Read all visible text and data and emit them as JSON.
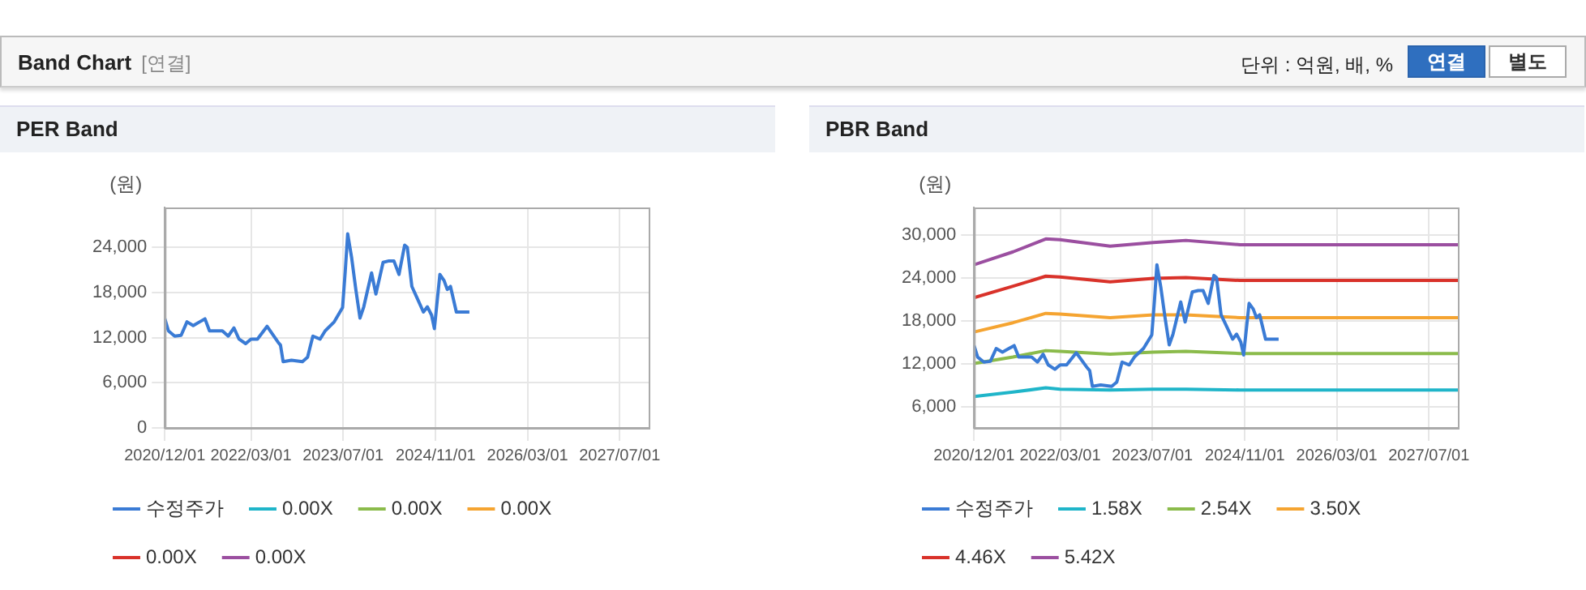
{
  "chart_data": [
    {
      "type": "line",
      "title": "PER Band",
      "ylabel": "(원)",
      "annotations": [
        "Band Chart",
        "[연결]",
        "단위 : 억원, 배, %",
        "연결",
        "별도"
      ],
      "x": [
        "2020-12-01",
        "2020-12-20",
        "2021-01-22",
        "2021-02-25",
        "2021-03-28",
        "2021-04-30",
        "2021-06-03",
        "2021-07-01",
        "2021-07-25",
        "2021-10-01",
        "2021-11-01",
        "2021-12-01",
        "2021-12-28",
        "2022-02-01",
        "2022-03-01",
        "2022-04-04",
        "2022-05-25",
        "2022-07-22",
        "2022-08-04",
        "2022-08-18",
        "2022-10-01",
        "2022-11-28",
        "2022-12-25",
        "2023-01-22",
        "2023-03-01",
        "2023-03-28",
        "2023-05-15",
        "2023-06-28",
        "2023-07-12",
        "2023-07-25",
        "2023-08-15",
        "2023-09-06",
        "2023-09-28",
        "2023-10-18",
        "2023-11-28",
        "2023-12-21",
        "2024-01-28",
        "2024-02-28",
        "2024-03-25",
        "2024-04-21",
        "2024-05-21",
        "2024-06-04",
        "2024-06-28",
        "2024-07-25",
        "2024-08-28",
        "2024-09-18",
        "2024-10-10",
        "2024-10-25",
        "2024-11-23",
        "2024-12-15",
        "2025-01-01",
        "2025-01-18",
        "2025-02-18",
        "2025-04-28"
      ],
      "series": [
        {
          "name": "수정주가",
          "color": "#3a7bd5",
          "values": [
            14500,
            12900,
            12200,
            12300,
            14100,
            13600,
            14100,
            14500,
            12900,
            12900,
            12200,
            13300,
            11800,
            11200,
            11800,
            11800,
            13500,
            11400,
            11000,
            8800,
            9000,
            8800,
            9400,
            12200,
            11800,
            12900,
            14100,
            16000,
            20800,
            25800,
            22600,
            18400,
            14600,
            16100,
            20600,
            17800,
            22000,
            22200,
            22200,
            20400,
            24300,
            24000,
            18800,
            17300,
            15400,
            16100,
            15000,
            13200,
            20400,
            19600,
            18400,
            18800,
            15400,
            15400
          ]
        },
        {
          "name": "0.00X",
          "color": "#1fb5c9",
          "values": [
            null,
            null,
            null,
            null,
            null,
            null,
            null,
            null,
            null,
            null,
            null,
            null,
            null,
            null,
            null,
            null,
            null,
            null,
            null,
            null,
            null,
            null,
            null,
            null,
            null,
            null,
            null,
            null,
            null,
            null,
            null,
            null,
            null,
            null,
            null,
            null,
            null,
            null,
            null,
            null,
            null,
            null,
            null,
            null,
            null,
            null,
            null,
            null,
            null,
            null,
            null,
            null,
            null,
            null
          ]
        },
        {
          "name": "0.00X",
          "color": "#8bbb4b",
          "values": [
            null,
            null,
            null,
            null,
            null,
            null,
            null,
            null,
            null,
            null,
            null,
            null,
            null,
            null,
            null,
            null,
            null,
            null,
            null,
            null,
            null,
            null,
            null,
            null,
            null,
            null,
            null,
            null,
            null,
            null,
            null,
            null,
            null,
            null,
            null,
            null,
            null,
            null,
            null,
            null,
            null,
            null,
            null,
            null,
            null,
            null,
            null,
            null,
            null,
            null,
            null,
            null,
            null,
            null
          ]
        },
        {
          "name": "0.00X",
          "color": "#f5a431",
          "values": [
            null,
            null,
            null,
            null,
            null,
            null,
            null,
            null,
            null,
            null,
            null,
            null,
            null,
            null,
            null,
            null,
            null,
            null,
            null,
            null,
            null,
            null,
            null,
            null,
            null,
            null,
            null,
            null,
            null,
            null,
            null,
            null,
            null,
            null,
            null,
            null,
            null,
            null,
            null,
            null,
            null,
            null,
            null,
            null,
            null,
            null,
            null,
            null,
            null,
            null,
            null,
            null,
            null,
            null
          ]
        },
        {
          "name": "0.00X",
          "color": "#d9322a",
          "values": [
            null,
            null,
            null,
            null,
            null,
            null,
            null,
            null,
            null,
            null,
            null,
            null,
            null,
            null,
            null,
            null,
            null,
            null,
            null,
            null,
            null,
            null,
            null,
            null,
            null,
            null,
            null,
            null,
            null,
            null,
            null,
            null,
            null,
            null,
            null,
            null,
            null,
            null,
            null,
            null,
            null,
            null,
            null,
            null,
            null,
            null,
            null,
            null,
            null,
            null,
            null,
            null,
            null,
            null
          ]
        },
        {
          "name": "0.00X",
          "color": "#9b4fa0",
          "values": [
            null,
            null,
            null,
            null,
            null,
            null,
            null,
            null,
            null,
            null,
            null,
            null,
            null,
            null,
            null,
            null,
            null,
            null,
            null,
            null,
            null,
            null,
            null,
            null,
            null,
            null,
            null,
            null,
            null,
            null,
            null,
            null,
            null,
            null,
            null,
            null,
            null,
            null,
            null,
            null,
            null,
            null,
            null,
            null,
            null,
            null,
            null,
            null,
            null,
            null,
            null,
            null,
            null,
            null
          ]
        }
      ],
      "xlim": [
        "2020-12-01",
        "2027-12-01"
      ],
      "xticks": [
        {
          "value": "2020-12-01",
          "label": "2020/12/01"
        },
        {
          "value": "2022-03-01",
          "label": "2022/03/01"
        },
        {
          "value": "2023-07-01",
          "label": "2023/07/01"
        },
        {
          "value": "2024-11-01",
          "label": "2024/11/01"
        },
        {
          "value": "2026-03-01",
          "label": "2026/03/01"
        },
        {
          "value": "2027-07-01",
          "label": "2027/07/01"
        }
      ],
      "ylim": [
        0,
        29300
      ],
      "yticks": [
        0,
        {
          "value": 6000,
          "label": "6,000"
        },
        {
          "value": 12000,
          "label": "12,000"
        },
        {
          "value": 18000,
          "label": "18,000"
        },
        {
          "value": 24000,
          "label": "24,000"
        }
      ],
      "grid": true,
      "legend": "bottom",
      "marker": "none",
      "line_style": "solid"
    },
    {
      "type": "line",
      "title": "PBR Band",
      "ylabel": "(원)",
      "x": [
        "2020-12-01",
        "2020-12-20",
        "2021-01-22",
        "2021-02-25",
        "2021-03-28",
        "2021-04-30",
        "2021-06-03",
        "2021-07-01",
        "2021-07-25",
        "2021-10-01",
        "2021-11-01",
        "2021-12-01",
        "2021-12-28",
        "2022-02-01",
        "2022-03-01",
        "2022-04-04",
        "2022-05-25",
        "2022-07-22",
        "2022-08-04",
        "2022-08-18",
        "2022-10-01",
        "2022-11-28",
        "2022-12-25",
        "2023-01-22",
        "2023-03-01",
        "2023-03-28",
        "2023-05-15",
        "2023-06-28",
        "2023-07-12",
        "2023-07-25",
        "2023-08-15",
        "2023-09-06",
        "2023-09-28",
        "2023-10-18",
        "2023-11-28",
        "2023-12-21",
        "2024-01-28",
        "2024-02-28",
        "2024-03-25",
        "2024-04-21",
        "2024-05-21",
        "2024-06-04",
        "2024-06-28",
        "2024-07-25",
        "2024-08-28",
        "2024-09-18",
        "2024-10-10",
        "2024-10-25",
        "2024-11-23",
        "2024-12-15",
        "2025-01-01",
        "2025-01-18",
        "2025-02-18",
        "2025-04-28"
      ],
      "series": [
        {
          "name": "수정주가",
          "color": "#3a7bd5",
          "values": [
            14500,
            12900,
            12200,
            12300,
            14100,
            13600,
            14100,
            14500,
            12900,
            12900,
            12200,
            13300,
            11800,
            11200,
            11800,
            11800,
            13500,
            11400,
            11000,
            8800,
            9000,
            8800,
            9400,
            12200,
            11800,
            12900,
            14100,
            16000,
            20800,
            25800,
            22600,
            18400,
            14600,
            16100,
            20600,
            17800,
            22000,
            22200,
            22200,
            20400,
            24300,
            24000,
            18800,
            17300,
            15400,
            16100,
            15000,
            13200,
            20400,
            19600,
            18400,
            18800,
            15400,
            15400
          ]
        },
        {
          "name": "1.58X",
          "color": "#1fb5c9",
          "x": [
            "2020-12-01",
            "2021-06-25",
            "2021-12-15",
            "2022-02-28",
            "2022-11-20",
            "2023-07-06",
            "2023-12-25",
            "2024-10-06",
            "2027-12-01"
          ],
          "values": [
            7400,
            8000,
            8600,
            8400,
            8300,
            8400,
            8400,
            8300,
            8300
          ]
        },
        {
          "name": "2.54X",
          "color": "#8bbb4b",
          "x": [
            "2020-12-01",
            "2021-06-25",
            "2021-12-15",
            "2022-02-28",
            "2022-11-20",
            "2023-07-06",
            "2023-12-25",
            "2024-10-06",
            "2027-12-01"
          ],
          "values": [
            12000,
            12900,
            13800,
            13700,
            13300,
            13600,
            13700,
            13400,
            13400
          ]
        },
        {
          "name": "3.50X",
          "color": "#f5a431",
          "x": [
            "2020-12-01",
            "2021-06-25",
            "2021-12-15",
            "2022-02-28",
            "2022-11-20",
            "2023-07-06",
            "2023-12-25",
            "2024-10-06",
            "2027-12-01"
          ],
          "values": [
            16400,
            17700,
            19000,
            18900,
            18400,
            18800,
            18800,
            18400,
            18400
          ]
        },
        {
          "name": "4.46X",
          "color": "#d9322a",
          "x": [
            "2020-12-01",
            "2021-06-25",
            "2021-12-15",
            "2022-02-28",
            "2022-11-20",
            "2023-07-06",
            "2023-12-25",
            "2024-10-06",
            "2027-12-01"
          ],
          "values": [
            21200,
            22800,
            24200,
            24100,
            23400,
            23900,
            24000,
            23600,
            23600
          ]
        },
        {
          "name": "5.42X",
          "color": "#9b4fa0",
          "x": [
            "2020-12-01",
            "2021-06-25",
            "2021-12-15",
            "2022-02-28",
            "2022-11-20",
            "2023-07-06",
            "2023-12-25",
            "2024-10-06",
            "2027-12-01"
          ],
          "values": [
            25800,
            27600,
            29400,
            29300,
            28400,
            28900,
            29200,
            28600,
            28600
          ]
        }
      ],
      "xlim": [
        "2020-12-01",
        "2027-12-01"
      ],
      "xticks": [
        {
          "value": "2020-12-01",
          "label": "2020/12/01"
        },
        {
          "value": "2022-03-01",
          "label": "2022/03/01"
        },
        {
          "value": "2023-07-01",
          "label": "2023/07/01"
        },
        {
          "value": "2024-11-01",
          "label": "2024/11/01"
        },
        {
          "value": "2026-03-01",
          "label": "2026/03/01"
        },
        {
          "value": "2027-07-01",
          "label": "2027/07/01"
        }
      ],
      "ylim": [
        3000,
        33800
      ],
      "yticks": [
        {
          "value": 6000,
          "label": "6,000"
        },
        {
          "value": 12000,
          "label": "12,000"
        },
        {
          "value": 18000,
          "label": "18,000"
        },
        {
          "value": 24000,
          "label": "24,000"
        },
        {
          "value": 30000,
          "label": "30,000"
        }
      ],
      "grid": true,
      "legend": "bottom",
      "marker": "none",
      "line_style": "solid"
    }
  ]
}
